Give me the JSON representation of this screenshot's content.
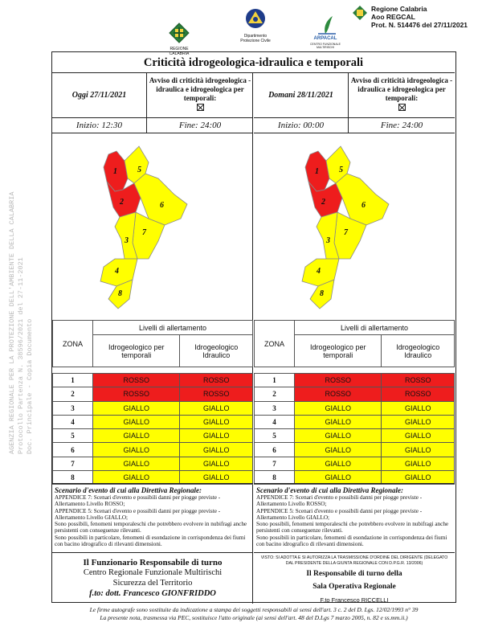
{
  "logos": {
    "regione": "REGIONE CALABRIA",
    "protezione_line1": "Dipartimento",
    "protezione_line2": "Protezione Civile",
    "arpacal": "ARPACAL",
    "arpacal_sub": "CENTRO FUNZIONALE MULTIRISCHI"
  },
  "protocol": {
    "line1": "Regione Calabria",
    "line2": "Aoo REGCAL",
    "line3": "Prot. N. 514476 del 27/11/2021"
  },
  "side_stamp": {
    "line1": "AGENZIA REGIONALE PER LA PROTEZIONE DELL'AMBIENTE DELLA CALABRIA",
    "line2": "Protocollo Partenza N. 38596/2021 del 27-11-2021",
    "line3": "Doc. Principale - Copia Documento"
  },
  "title": "Criticità idrogeologica-idraulica e temporali",
  "avviso_label": "Avviso di criticità idrogeologica - idraulica e idrogeologica per temporali:",
  "table_headers": {
    "zona": "ZONA",
    "livelli": "Livelli di allertamento",
    "col1": "Idrogeologico per temporali",
    "col2": "Idrogeologico Idraulico"
  },
  "days": [
    {
      "date": "Oggi 27/11/2021",
      "inizio": "Inizio: 12:30",
      "fine": "Fine: 24:00",
      "zones": [
        {
          "zona": "1",
          "temporali": "ROSSO",
          "idraulico": "ROSSO"
        },
        {
          "zona": "2",
          "temporali": "ROSSO",
          "idraulico": "ROSSO"
        },
        {
          "zona": "3",
          "temporali": "GIALLO",
          "idraulico": "GIALLO"
        },
        {
          "zona": "4",
          "temporali": "GIALLO",
          "idraulico": "GIALLO"
        },
        {
          "zona": "5",
          "temporali": "GIALLO",
          "idraulico": "GIALLO"
        },
        {
          "zona": "6",
          "temporali": "GIALLO",
          "idraulico": "GIALLO"
        },
        {
          "zona": "7",
          "temporali": "GIALLO",
          "idraulico": "GIALLO"
        },
        {
          "zona": "8",
          "temporali": "GIALLO",
          "idraulico": "GIALLO"
        }
      ]
    },
    {
      "date": "Domani 28/11/2021",
      "inizio": "Inizio: 00:00",
      "fine": "Fine: 24:00",
      "zones": [
        {
          "zona": "1",
          "temporali": "ROSSO",
          "idraulico": "ROSSO"
        },
        {
          "zona": "2",
          "temporali": "ROSSO",
          "idraulico": "ROSSO"
        },
        {
          "zona": "3",
          "temporali": "GIALLO",
          "idraulico": "GIALLO"
        },
        {
          "zona": "4",
          "temporali": "GIALLO",
          "idraulico": "GIALLO"
        },
        {
          "zona": "5",
          "temporali": "GIALLO",
          "idraulico": "GIALLO"
        },
        {
          "zona": "6",
          "temporali": "GIALLO",
          "idraulico": "GIALLO"
        },
        {
          "zona": "7",
          "temporali": "GIALLO",
          "idraulico": "GIALLO"
        },
        {
          "zona": "8",
          "temporali": "GIALLO",
          "idraulico": "GIALLO"
        }
      ]
    }
  ],
  "colors": {
    "rosso": "#ee1d1d",
    "giallo": "#ffff00"
  },
  "scenario": {
    "title": "Scenario d'evento di cui alla Direttiva Regionale:",
    "lines": [
      "APPENDICE 7: Scenari d'evento e possibili danni per piogge previste - Allertamento Livello ROSSO;",
      "APPENDICE 5: Scenari d'evento e possibili danni per piogge previste - Allertamento Livello GIALLO;",
      "Sono possibili, fenomeni temporaleschi che potrebbero evolvere in nubifragi anche persistenti con conseguenze rilevanti.",
      "Sono possibili in particolare, fenomeni di esondazione in corrispondenza dei fiumi con bacino idrografico di rilevanti dimensioni."
    ]
  },
  "footer_left": {
    "line1": "Il Funzionario Responsabile di turno",
    "line2": "Centro Regionale Funzionale Multirischi",
    "line3": "Sicurezza del Territorio",
    "line4": "f.to: dott. Francesco GIONFRIDDO"
  },
  "footer_right": {
    "visto": "VISTO: SI ADOTTA E SI AUTORIZZA LA TRASMISSIONE D'ORDINE DEL DIRIGENTE (DELEGATO DAL PRESIDENTE DELLA GIUNTA REGIONALE CON D.P.G.R. 13/2006)",
    "line1": "Il Responsabile di turno della",
    "line2": "Sala Operativa Regionale",
    "line3": "F.to Francesco RICCELLI"
  },
  "note": {
    "line1": "Le firme autografe sono sostituite da indicazione a stampa dei soggetti responsabili ai sensi dell'art. 3 c. 2 del D. Lgs. 12/02/1993 n° 39",
    "line2": "La presente nota, trasmessa via PEC, sostituisce l'atto originale (ai sensi dell'art. 48 del D.Lgs 7 marzo 2005, n. 82 e ss.mm.ii.)"
  }
}
